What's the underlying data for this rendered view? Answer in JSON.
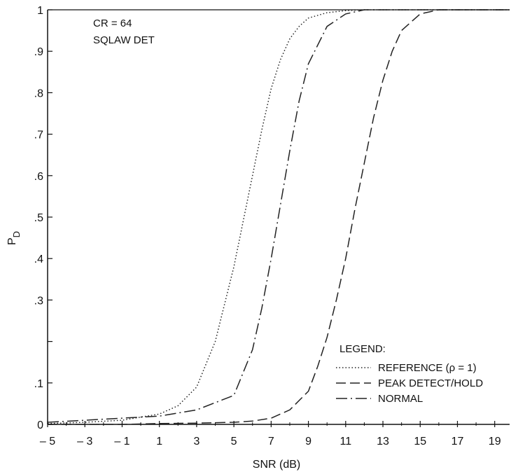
{
  "chart_data": {
    "type": "line",
    "title": "",
    "xlabel": "SNR (dB)",
    "ylabel": "P",
    "ylabel_subscript": "D",
    "xlim": [
      -5,
      19.8
    ],
    "ylim": [
      0,
      1
    ],
    "x_ticks": [
      -5,
      -3,
      -1,
      1,
      3,
      5,
      7,
      9,
      11,
      13,
      15,
      17,
      19
    ],
    "x_tick_labels": [
      "– 5",
      "– 3",
      "– 1",
      "1",
      "3",
      "5",
      "7",
      "9",
      "11",
      "13",
      "15",
      "17",
      "19"
    ],
    "y_ticks": [
      0,
      0.1,
      0.2,
      0.3,
      0.4,
      0.5,
      0.6,
      0.7,
      0.8,
      0.9,
      1.0
    ],
    "y_tick_labels": [
      "0",
      ".1",
      "",
      ".3",
      ".4",
      ".5",
      ".6",
      ".7",
      ".8",
      ".9",
      "1"
    ],
    "annotations": [
      "CR  =  64",
      "SQLAW DET"
    ],
    "legend": {
      "title": "LEGEND:",
      "placement": "bottom-right"
    },
    "series": [
      {
        "name": "REFERENCE (ρ = 1)",
        "style": "dotted",
        "x": [
          -5,
          -3,
          -1,
          1,
          2,
          3,
          4,
          5,
          6,
          6.5,
          7,
          7.5,
          8,
          8.5,
          9,
          10,
          11,
          12,
          13,
          15,
          19.8
        ],
        "y": [
          0.002,
          0.005,
          0.01,
          0.025,
          0.045,
          0.09,
          0.2,
          0.38,
          0.6,
          0.71,
          0.81,
          0.88,
          0.93,
          0.96,
          0.98,
          0.993,
          0.998,
          1.0,
          1.0,
          1.0,
          1.0
        ]
      },
      {
        "name": "PEAK DETECT/HOLD",
        "style": "dashed",
        "x": [
          -5,
          -3,
          -1,
          1,
          3,
          5,
          6,
          7,
          8,
          9,
          9.5,
          10,
          10.5,
          11,
          11.5,
          12,
          12.5,
          13,
          13.5,
          14,
          15,
          16,
          17,
          19.8
        ],
        "y": [
          0.0,
          0.0,
          0.0,
          0.002,
          0.003,
          0.005,
          0.008,
          0.015,
          0.035,
          0.08,
          0.14,
          0.21,
          0.3,
          0.4,
          0.52,
          0.63,
          0.74,
          0.83,
          0.9,
          0.95,
          0.99,
          1.0,
          1.0,
          1.0
        ]
      },
      {
        "name": "NORMAL",
        "style": "dash-dot",
        "x": [
          -5,
          -3,
          -1,
          1,
          3,
          5,
          6,
          6.5,
          7,
          7.5,
          8,
          8.5,
          9,
          10,
          11,
          12,
          13,
          15,
          19.8
        ],
        "y": [
          0.005,
          0.01,
          0.015,
          0.02,
          0.035,
          0.07,
          0.18,
          0.28,
          0.4,
          0.53,
          0.66,
          0.78,
          0.87,
          0.96,
          0.99,
          1.0,
          1.0,
          1.0,
          1.0
        ]
      }
    ]
  }
}
